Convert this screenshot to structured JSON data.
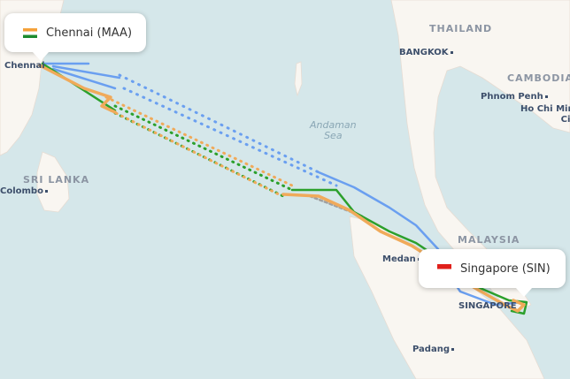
{
  "map": {
    "colors": {
      "sea": "#d5e7ea",
      "land": "#f9f6f1",
      "route_blue": "#6a9ff0",
      "route_orange": "#f0aa5a",
      "route_green": "#2ca02c",
      "route_gray": "#a0a0a0"
    },
    "labels": {
      "countries": [
        "THAILAND",
        "CAMBODIA",
        "SRI LANKA",
        "MALAYSIA",
        "SINGAPORE"
      ],
      "cities": [
        "Chennai",
        "Bangkok",
        "Phnom Penh",
        "Ho Chi Minh City",
        "Colombo",
        "Medan",
        "Padang"
      ],
      "sea": "Andaman Sea"
    },
    "display": {
      "chennai": "Chennai",
      "bangkok": "BANGKOK",
      "phnom": "Phnom Penh",
      "hcmc1": "Ho Chi Minh",
      "hcmc2": "City",
      "colombo": "olombo",
      "medan": "Medan",
      "padang": "Padang",
      "singapore": "SINGAPORE",
      "andaman1": "Andaman",
      "andaman2": "Sea"
    }
  },
  "origin": {
    "label": "Chennai (MAA)",
    "flag": "india-flag-icon"
  },
  "destination": {
    "label": "Singapore (SIN)",
    "flag": "singapore-flag-icon"
  }
}
